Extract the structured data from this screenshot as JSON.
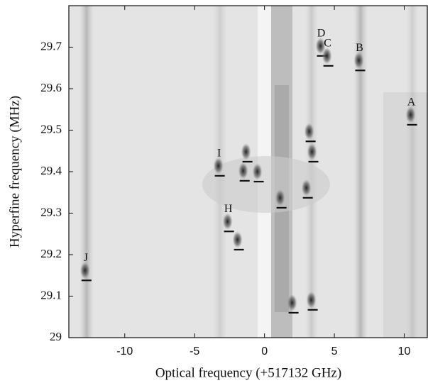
{
  "chart_data": {
    "type": "spectrum-map",
    "xlabel": "Optical frequency (+517132 GHz)",
    "ylabel": "Hyperfine frequency (MHz)",
    "xlim": [
      -14,
      11.7
    ],
    "ylim": [
      29,
      29.8
    ],
    "xticks": [
      -10,
      -5,
      0,
      5,
      10
    ],
    "yticks": [
      29,
      29.1,
      29.2,
      29.3,
      29.4,
      29.5,
      29.6,
      29.7
    ],
    "color": "#111111",
    "x": [
      -12.74,
      -3.2,
      -2.54,
      -1.83,
      -1.22,
      -1.42,
      -0.41,
      1.22,
      3.1,
      3.3,
      3.5,
      4.11,
      4.57,
      6.85,
      10.56,
      2.08,
      3.45
    ],
    "values": [
      29.138,
      29.39,
      29.256,
      29.212,
      29.424,
      29.378,
      29.376,
      29.313,
      29.337,
      29.473,
      29.424,
      29.679,
      29.655,
      29.644,
      29.513,
      29.06,
      29.067
    ],
    "labels": [
      "J",
      "I",
      "H",
      null,
      null,
      null,
      null,
      null,
      null,
      null,
      null,
      "D",
      "C",
      "B",
      "A",
      null,
      null
    ]
  }
}
